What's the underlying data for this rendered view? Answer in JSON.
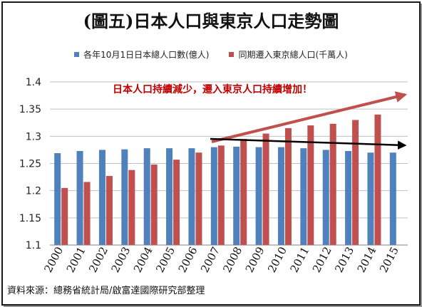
{
  "title": "(圖五)日本人口與東京人口走勢圖",
  "annotation": "日本人口持續減少，遷入東京人口持續增加！",
  "source": "資料來源：總務省統計局/啟富達國際研究部整理",
  "colors": {
    "blue": "#4f81bd",
    "red": "#c0504d",
    "annotation_red": "#c00000",
    "arrow_red": "#c0504d",
    "arrow_black": "#000000"
  },
  "chart_data": {
    "type": "bar",
    "categories": [
      "2000",
      "2001",
      "2002",
      "2003",
      "2004",
      "2005",
      "2006",
      "2007",
      "2008",
      "2009",
      "2010",
      "2011",
      "2012",
      "2013",
      "2014",
      "2015"
    ],
    "series": [
      {
        "name": "各年10月1日日本總人口數(億人)",
        "color": "#4f81bd",
        "values": [
          1.269,
          1.273,
          1.275,
          1.276,
          1.278,
          1.278,
          1.278,
          1.28,
          1.281,
          1.28,
          1.28,
          1.278,
          1.275,
          1.273,
          1.27,
          1.27
        ]
      },
      {
        "name": "同期遷入東京總人口(千萬人)",
        "color": "#c0504d",
        "values": [
          1.205,
          1.216,
          1.227,
          1.238,
          1.248,
          1.257,
          1.27,
          1.283,
          1.295,
          1.305,
          1.315,
          1.32,
          1.323,
          1.33,
          1.34,
          null
        ]
      }
    ],
    "ylim": [
      1.1,
      1.4
    ],
    "yticks": [
      "1.1",
      "1.15",
      "1.2",
      "1.25",
      "1.3",
      "1.35",
      "1.4"
    ],
    "grid": true,
    "legend": "top"
  }
}
